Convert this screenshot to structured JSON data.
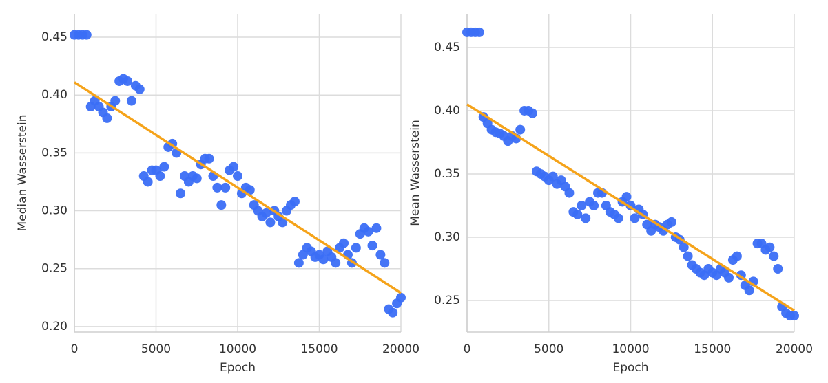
{
  "chart_data": [
    {
      "type": "scatter",
      "xlabel": "Epoch",
      "ylabel": "Median Wasserstein",
      "color": "#3b6ef6",
      "grid": true,
      "x": [
        0,
        250,
        500,
        750,
        1000,
        1250,
        1500,
        1750,
        2000,
        2250,
        2500,
        2750,
        3000,
        3250,
        3500,
        3750,
        4000,
        4250,
        4500,
        4750,
        5000,
        5250,
        5500,
        5750,
        6000,
        6250,
        6500,
        6750,
        7000,
        7250,
        7500,
        7750,
        8000,
        8250,
        8500,
        8750,
        9000,
        9250,
        9500,
        9750,
        10000,
        10250,
        10500,
        10750,
        11000,
        11250,
        11500,
        11750,
        12000,
        12250,
        12500,
        12750,
        13000,
        13250,
        13500,
        13750,
        14000,
        14250,
        14500,
        14750,
        15000,
        15250,
        15500,
        15750,
        16000,
        16250,
        16500,
        16750,
        17000,
        17250,
        17500,
        17750,
        18000,
        18250,
        18500,
        18750,
        19000,
        19250,
        19500,
        19750,
        20000
      ],
      "values": [
        0.452,
        0.452,
        0.452,
        0.452,
        0.39,
        0.395,
        0.39,
        0.385,
        0.38,
        0.39,
        0.395,
        0.412,
        0.414,
        0.412,
        0.395,
        0.408,
        0.405,
        0.33,
        0.325,
        0.335,
        0.335,
        0.33,
        0.338,
        0.355,
        0.358,
        0.35,
        0.315,
        0.33,
        0.325,
        0.33,
        0.328,
        0.34,
        0.345,
        0.345,
        0.33,
        0.32,
        0.305,
        0.32,
        0.335,
        0.338,
        0.33,
        0.315,
        0.32,
        0.318,
        0.305,
        0.3,
        0.295,
        0.298,
        0.29,
        0.3,
        0.295,
        0.29,
        0.3,
        0.305,
        0.308,
        0.255,
        0.262,
        0.268,
        0.265,
        0.26,
        0.262,
        0.258,
        0.265,
        0.26,
        0.255,
        0.268,
        0.272,
        0.262,
        0.255,
        0.268,
        0.28,
        0.285,
        0.282,
        0.27,
        0.285,
        0.262,
        0.255,
        0.215,
        0.212,
        0.22,
        0.225
      ],
      "trend": {
        "x": [
          0,
          20000
        ],
        "values": [
          0.411,
          0.229
        ],
        "color": "#f5a31a"
      },
      "xlim": [
        0,
        20000
      ],
      "xticks": [
        0,
        5000,
        10000,
        15000,
        20000
      ],
      "ylim": [
        0.1952,
        0.4702
      ],
      "yticks": [
        {
          "value": 0.2,
          "label": "0.20"
        },
        0.25,
        {
          "value": 0.3,
          "label": "0.30"
        },
        0.35,
        {
          "value": 0.4,
          "label": "0.40"
        },
        0.45
      ]
    },
    {
      "type": "scatter",
      "xlabel": "Epoch",
      "ylabel": "Mean Wasserstein",
      "color": "#3b6ef6",
      "grid": true,
      "x": [
        0,
        250,
        500,
        750,
        1000,
        1250,
        1500,
        1750,
        2000,
        2250,
        2500,
        2750,
        3000,
        3250,
        3500,
        3750,
        4000,
        4250,
        4500,
        4750,
        5000,
        5250,
        5500,
        5750,
        6000,
        6250,
        6500,
        6750,
        7000,
        7250,
        7500,
        7750,
        8000,
        8250,
        8500,
        8750,
        9000,
        9250,
        9500,
        9750,
        10000,
        10250,
        10500,
        10750,
        11000,
        11250,
        11500,
        11750,
        12000,
        12250,
        12500,
        12750,
        13000,
        13250,
        13500,
        13750,
        14000,
        14250,
        14500,
        14750,
        15000,
        15250,
        15500,
        15750,
        16000,
        16250,
        16500,
        16750,
        17000,
        17250,
        17500,
        17750,
        18000,
        18250,
        18500,
        18750,
        19000,
        19250,
        19500,
        19750,
        20000
      ],
      "values": [
        0.462,
        0.462,
        0.462,
        0.462,
        0.395,
        0.39,
        0.385,
        0.383,
        0.382,
        0.38,
        0.376,
        0.38,
        0.378,
        0.385,
        0.4,
        0.4,
        0.398,
        0.352,
        0.35,
        0.348,
        0.345,
        0.348,
        0.342,
        0.345,
        0.34,
        0.335,
        0.32,
        0.318,
        0.325,
        0.315,
        0.328,
        0.325,
        0.335,
        0.335,
        0.325,
        0.32,
        0.318,
        0.315,
        0.328,
        0.332,
        0.325,
        0.315,
        0.322,
        0.318,
        0.31,
        0.305,
        0.31,
        0.308,
        0.305,
        0.31,
        0.312,
        0.3,
        0.298,
        0.292,
        0.285,
        0.278,
        0.275,
        0.272,
        0.27,
        0.275,
        0.272,
        0.27,
        0.275,
        0.272,
        0.268,
        0.282,
        0.285,
        0.27,
        0.262,
        0.258,
        0.265,
        0.295,
        0.295,
        0.29,
        0.292,
        0.285,
        0.275,
        0.245,
        0.24,
        0.238,
        0.238
      ],
      "trend": {
        "x": [
          0,
          20000
        ],
        "values": [
          0.405,
          0.242
        ],
        "color": "#f5a31a"
      },
      "xlim": [
        0,
        20000
      ],
      "xticks": [
        0,
        5000,
        10000,
        15000,
        20000
      ],
      "ylim": [
        0.225,
        0.4766
      ],
      "yticks": [
        0.25,
        {
          "value": 0.3,
          "label": "0.30"
        },
        0.35,
        {
          "value": 0.4,
          "label": "0.40"
        },
        0.45
      ]
    }
  ]
}
